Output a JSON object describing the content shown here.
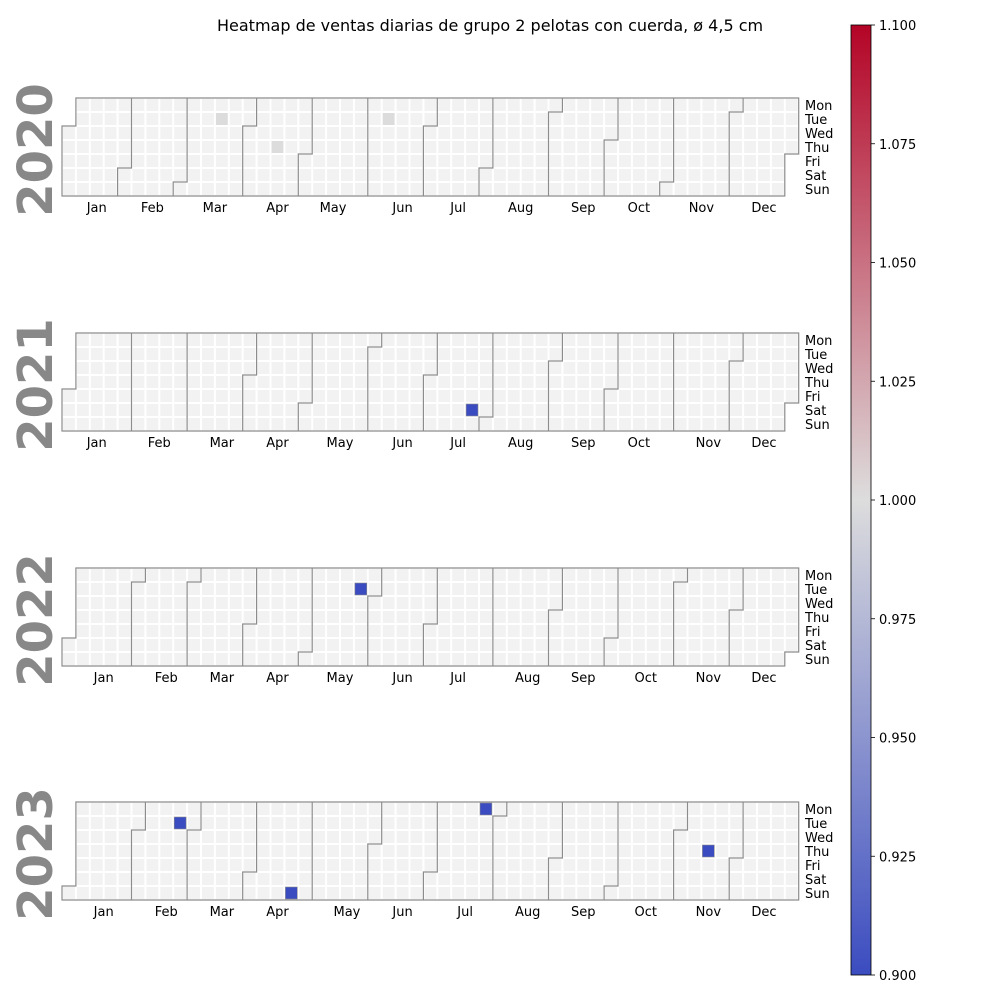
{
  "chart_data": {
    "type": "heatmap",
    "title": "Heatmap de ventas diarias de grupo 2 pelotas con cuerda, ø 4,5 cm",
    "years": [
      "2020",
      "2021",
      "2022",
      "2023"
    ],
    "months": [
      "Jan",
      "Feb",
      "Mar",
      "Apr",
      "May",
      "Jun",
      "Jul",
      "Aug",
      "Sep",
      "Oct",
      "Nov",
      "Dec"
    ],
    "weekdays": [
      "Mon",
      "Tue",
      "Wed",
      "Thu",
      "Fri",
      "Sat",
      "Sun"
    ],
    "cells": [
      {
        "date": "2021-07-24",
        "value": 0.9
      },
      {
        "date": "2022-05-24",
        "value": 0.9
      },
      {
        "date": "2023-02-21",
        "value": 0.9
      },
      {
        "date": "2023-04-23",
        "value": 0.9
      },
      {
        "date": "2023-07-24",
        "value": 0.9
      },
      {
        "date": "2023-11-16",
        "value": 0.9
      }
    ],
    "highlighted_dates": [
      "2020-03-17",
      "2020-04-16",
      "2020-06-09"
    ],
    "colorbar": {
      "min": 0.9,
      "max": 1.1,
      "ticks": [
        "0.900",
        "0.925",
        "0.950",
        "0.975",
        "1.000",
        "1.025",
        "1.050",
        "1.075",
        "1.100"
      ],
      "colormap": "coolwarm",
      "colors": {
        "low": "#3b4cc0",
        "mid": "#dddddd",
        "high": "#b40426"
      }
    },
    "colors": {
      "empty": "#f2f2f2",
      "highlight": "#dcdcdc",
      "outline": "#8c8c8c",
      "year": "#888888"
    }
  }
}
